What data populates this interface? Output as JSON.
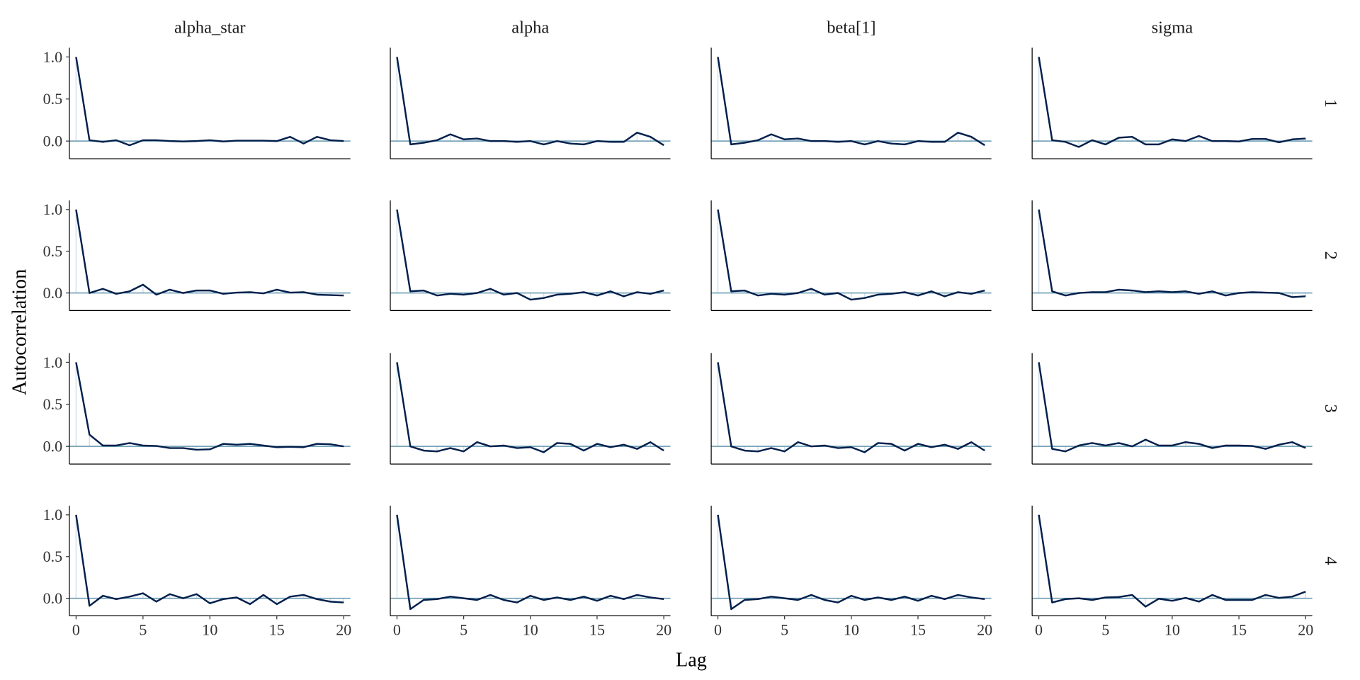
{
  "chart_data": {
    "type": "line",
    "title": "",
    "xlabel": "Lag",
    "ylabel": "Autocorrelation",
    "xlim": [
      -0.5,
      20.5
    ],
    "ylim": [
      -0.21,
      1.11
    ],
    "x_ticks": [
      0,
      5,
      10,
      15,
      20
    ],
    "y_ticks": [
      0.0,
      0.5,
      1.0
    ],
    "y_tick_labels": [
      "0.0",
      "0.5",
      "1.0"
    ],
    "columns": [
      "alpha_star",
      "alpha",
      "beta[1]",
      "sigma"
    ],
    "rows": [
      "1",
      "2",
      "3",
      "4"
    ],
    "colors": {
      "line": "#011f4b",
      "bar": "#d1e1ec",
      "hline": "#6497b1",
      "axis": "#000000"
    },
    "lags": [
      0,
      1,
      2,
      3,
      4,
      5,
      6,
      7,
      8,
      9,
      10,
      11,
      12,
      13,
      14,
      15,
      16,
      17,
      18,
      19,
      20
    ],
    "panels": [
      {
        "chain": "1",
        "parameter": "alpha_star",
        "values": [
          1,
          0.01,
          -0.01,
          0.01,
          -0.05,
          0.01,
          0.01,
          0,
          -0.005,
          0,
          0.01,
          -0.005,
          0.005,
          0.005,
          0.005,
          0,
          0.05,
          -0.03,
          0.05,
          0.01,
          0
        ]
      },
      {
        "chain": "1",
        "parameter": "alpha",
        "values": [
          1,
          -0.04,
          -0.02,
          0.01,
          0.08,
          0.02,
          0.03,
          0,
          0,
          -0.01,
          0,
          -0.04,
          0,
          -0.03,
          -0.04,
          0,
          -0.01,
          -0.01,
          0.1,
          0.05,
          -0.05
        ]
      },
      {
        "chain": "1",
        "parameter": "beta[1]",
        "values": [
          1,
          -0.04,
          -0.02,
          0.01,
          0.08,
          0.02,
          0.03,
          0,
          0,
          -0.01,
          0,
          -0.04,
          0,
          -0.03,
          -0.04,
          0,
          -0.01,
          -0.01,
          0.1,
          0.05,
          -0.05
        ]
      },
      {
        "chain": "1",
        "parameter": "sigma",
        "values": [
          1,
          0.01,
          -0.01,
          -0.07,
          0.01,
          -0.04,
          0.04,
          0.05,
          -0.04,
          -0.04,
          0.02,
          0,
          0.06,
          0,
          0,
          -0.005,
          0.025,
          0.025,
          -0.015,
          0.02,
          0.03
        ]
      },
      {
        "chain": "2",
        "parameter": "alpha_star",
        "values": [
          1,
          0,
          0.05,
          -0.01,
          0.02,
          0.1,
          -0.02,
          0.04,
          0,
          0.03,
          0.03,
          -0.01,
          0.005,
          0.01,
          -0.005,
          0.04,
          0.005,
          0.01,
          -0.02,
          -0.025,
          -0.03
        ]
      },
      {
        "chain": "2",
        "parameter": "alpha",
        "values": [
          1,
          0.02,
          0.03,
          -0.03,
          -0.01,
          -0.02,
          0,
          0.05,
          -0.02,
          0,
          -0.08,
          -0.06,
          -0.02,
          -0.01,
          0.01,
          -0.03,
          0.02,
          -0.04,
          0.01,
          -0.01,
          0.03
        ]
      },
      {
        "chain": "2",
        "parameter": "beta[1]",
        "values": [
          1,
          0.02,
          0.03,
          -0.03,
          -0.01,
          -0.02,
          0,
          0.05,
          -0.02,
          0,
          -0.08,
          -0.06,
          -0.02,
          -0.01,
          0.01,
          -0.03,
          0.02,
          -0.04,
          0.01,
          -0.01,
          0.03
        ]
      },
      {
        "chain": "2",
        "parameter": "sigma",
        "values": [
          1,
          0.02,
          -0.03,
          0,
          0.01,
          0.01,
          0.04,
          0.03,
          0.01,
          0.02,
          0.01,
          0.02,
          -0.01,
          0.02,
          -0.03,
          0,
          0.01,
          0.005,
          0,
          -0.05,
          -0.04
        ]
      },
      {
        "chain": "3",
        "parameter": "alpha_star",
        "values": [
          1,
          0.14,
          0.01,
          0.01,
          0.04,
          0.01,
          0.005,
          -0.02,
          -0.02,
          -0.04,
          -0.035,
          0.03,
          0.02,
          0.03,
          0.01,
          -0.01,
          -0.005,
          -0.01,
          0.03,
          0.025,
          0
        ]
      },
      {
        "chain": "3",
        "parameter": "alpha",
        "values": [
          1,
          0,
          -0.05,
          -0.06,
          -0.02,
          -0.06,
          0.05,
          0,
          0.01,
          -0.02,
          -0.01,
          -0.07,
          0.04,
          0.03,
          -0.05,
          0.03,
          -0.01,
          0.02,
          -0.03,
          0.05,
          -0.05
        ]
      },
      {
        "chain": "3",
        "parameter": "beta[1]",
        "values": [
          1,
          0,
          -0.05,
          -0.06,
          -0.02,
          -0.06,
          0.05,
          0,
          0.01,
          -0.02,
          -0.01,
          -0.07,
          0.04,
          0.03,
          -0.05,
          0.03,
          -0.01,
          0.02,
          -0.03,
          0.05,
          -0.05
        ]
      },
      {
        "chain": "3",
        "parameter": "sigma",
        "values": [
          1,
          -0.03,
          -0.06,
          0.01,
          0.04,
          0.01,
          0.04,
          0,
          0.08,
          0.01,
          0.01,
          0.05,
          0.03,
          -0.02,
          0.01,
          0.01,
          0.005,
          -0.03,
          0.02,
          0.05,
          -0.02
        ]
      },
      {
        "chain": "4",
        "parameter": "alpha_star",
        "values": [
          1,
          -0.09,
          0.03,
          -0.01,
          0.02,
          0.06,
          -0.04,
          0.05,
          0,
          0.05,
          -0.06,
          -0.01,
          0.01,
          -0.07,
          0.04,
          -0.07,
          0.02,
          0.04,
          -0.01,
          -0.04,
          -0.05
        ]
      },
      {
        "chain": "4",
        "parameter": "alpha",
        "values": [
          1,
          -0.13,
          -0.02,
          -0.01,
          0.02,
          0,
          -0.02,
          0.04,
          -0.02,
          -0.05,
          0.03,
          -0.02,
          0.01,
          -0.02,
          0.02,
          -0.03,
          0.03,
          -0.01,
          0.04,
          0.01,
          -0.01
        ]
      },
      {
        "chain": "4",
        "parameter": "beta[1]",
        "values": [
          1,
          -0.13,
          -0.02,
          -0.01,
          0.02,
          0,
          -0.02,
          0.04,
          -0.02,
          -0.05,
          0.03,
          -0.02,
          0.01,
          -0.02,
          0.02,
          -0.03,
          0.03,
          -0.01,
          0.04,
          0.01,
          -0.01
        ]
      },
      {
        "chain": "4",
        "parameter": "sigma",
        "values": [
          1,
          -0.05,
          -0.01,
          0,
          -0.02,
          0.01,
          0.015,
          0.04,
          -0.1,
          -0.005,
          -0.03,
          0.005,
          -0.04,
          0.04,
          -0.02,
          -0.02,
          -0.02,
          0.04,
          0.005,
          0.02,
          0.08
        ]
      }
    ]
  }
}
